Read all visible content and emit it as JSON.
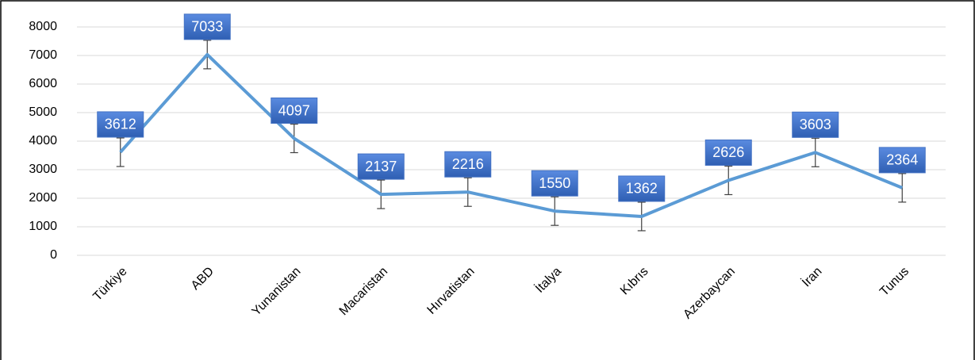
{
  "chart_data": {
    "type": "line",
    "categories": [
      "Türkiye",
      "ABD",
      "Yunanistan",
      "Macaristan",
      "Hırvatistan",
      "İtalya",
      "Kıbrıs",
      "Azerbaycan",
      "İran",
      "Tunus"
    ],
    "values": [
      3612,
      7033,
      4097,
      2137,
      2216,
      1550,
      1362,
      2626,
      3603,
      2364
    ],
    "errors": [
      500,
      500,
      500,
      500,
      500,
      500,
      500,
      500,
      500,
      500
    ],
    "color": "#5b9bd5",
    "label_color": "#4472c4",
    "ylim": [
      0,
      8000
    ],
    "yticks": [
      0,
      1000,
      2000,
      3000,
      4000,
      5000,
      6000,
      7000,
      8000
    ],
    "grid": true
  }
}
